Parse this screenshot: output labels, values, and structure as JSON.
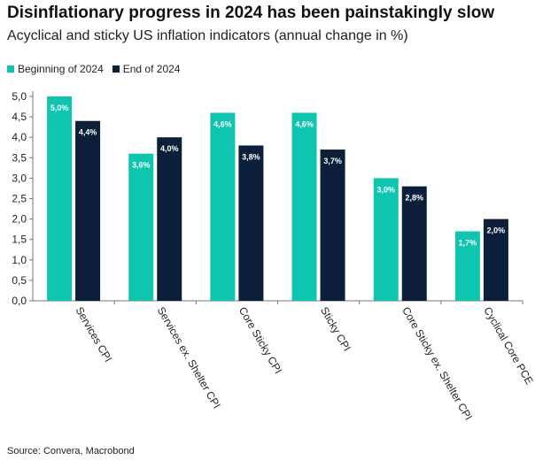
{
  "header": {
    "title": "Disinflationary progress in 2024 has been painstakingly slow",
    "subtitle": "Acyclical and sticky US inflation indicators (annual change in %)"
  },
  "footer": {
    "source": "Source: Convera, Macrobond"
  },
  "colors": {
    "begin": "#0fc5b0",
    "end": "#0b1f3a",
    "label": "#ffffff",
    "axis": "#777777",
    "text": "#222222"
  },
  "chart_data": {
    "type": "bar",
    "categories": [
      "Services CPI",
      "Services ex. Shelter CPI",
      "Core Sticky CPI",
      "Sticky CPI",
      "Core Sticky ex. Shelter CPI",
      "Cyclical Core PCE"
    ],
    "series": [
      {
        "name": "Beginning of 2024",
        "values": [
          5.0,
          3.6,
          4.6,
          4.6,
          3.0,
          1.7
        ],
        "labels": [
          "5,0%",
          "3,6%",
          "4,6%",
          "4,6%",
          "3,0%",
          "1,7%"
        ]
      },
      {
        "name": "End of 2024",
        "values": [
          4.4,
          4.0,
          3.8,
          3.7,
          2.8,
          2.0
        ],
        "labels": [
          "4,4%",
          "4,0%",
          "3,8%",
          "3,7%",
          "2,8%",
          "2,0%"
        ]
      }
    ],
    "yticks": [
      "0,0",
      "0,5",
      "1,0",
      "1,5",
      "2,0",
      "2,5",
      "3,0",
      "3,5",
      "4,0",
      "4,5",
      "5,0"
    ],
    "ylim": [
      0,
      5
    ],
    "legend_position": "top-left",
    "grid": false
  }
}
